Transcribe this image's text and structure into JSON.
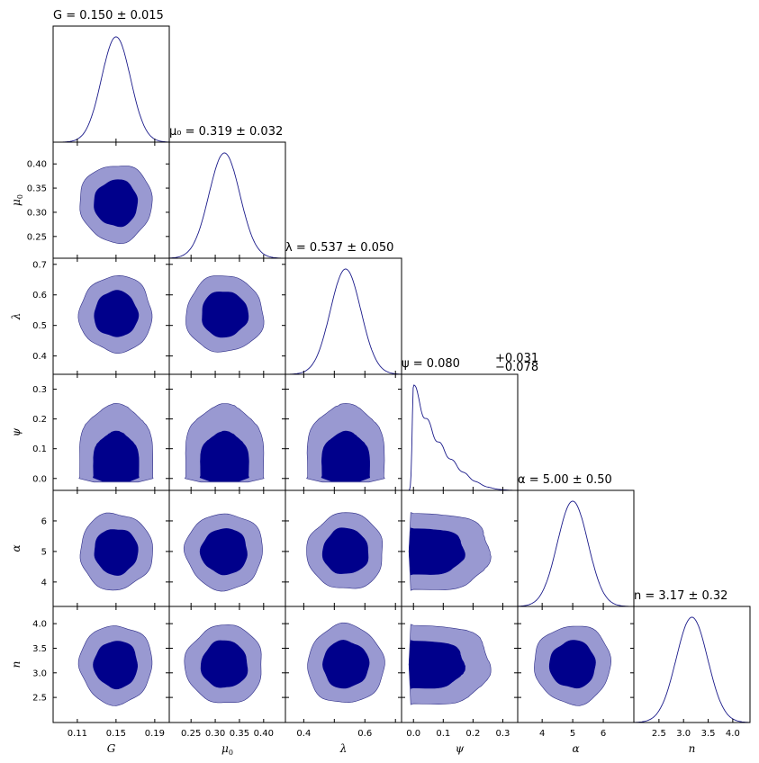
{
  "chart_data": {
    "type": "corner",
    "colors": {
      "line": "#1a1a8a",
      "inner": "#00008b",
      "outer": "#9999d1",
      "outer_edge": "#2c2c86"
    },
    "params": [
      {
        "symbol": "G",
        "sub": "",
        "xlabel_sym": "G",
        "xlabel_sub": "",
        "title_main": "G = 0.150 ± 0.015",
        "title_sup": "",
        "title_sub": "",
        "range": [
          0.085,
          0.205
        ],
        "ticks": [
          0.11,
          0.15,
          0.19
        ],
        "tick_labels": [
          "0.11",
          "0.15",
          "0.19"
        ],
        "mean": 0.15,
        "sd": 0.015
      },
      {
        "symbol": "μ",
        "sub": "0",
        "xlabel_sym": "μ",
        "xlabel_sub": "0",
        "title_main": "μ₀ = 0.319 ± 0.032",
        "title_sup": "",
        "title_sub": "",
        "range": [
          0.205,
          0.445
        ],
        "ticks": [
          0.25,
          0.3,
          0.35,
          0.4
        ],
        "tick_labels": [
          "0.25",
          "0.30",
          "0.35",
          "0.40"
        ],
        "ytick_labels": [
          "0.25",
          "0.30",
          "0.35",
          "0.40"
        ],
        "mean": 0.319,
        "sd": 0.032
      },
      {
        "symbol": "λ",
        "sub": "",
        "xlabel_sym": "λ",
        "xlabel_sub": "",
        "title_main": "λ = 0.537 ± 0.050",
        "title_sup": "",
        "title_sub": "",
        "range": [
          0.34,
          0.72
        ],
        "ticks": [
          0.4,
          0.5,
          0.6,
          0.7
        ],
        "tick_labels": [
          "0.4",
          "0.5",
          "0.6",
          "0.7"
        ],
        "xtick_labels": [
          "0.4",
          "",
          "0.6",
          ""
        ],
        "mean": 0.537,
        "sd": 0.05
      },
      {
        "symbol": "ψ",
        "sub": "",
        "xlabel_sym": "ψ",
        "xlabel_sub": "",
        "title_main": "ψ = 0.080",
        "title_sup": "+0.031",
        "title_sub": "−0.078",
        "range": [
          -0.04,
          0.35
        ],
        "ticks": [
          0.0,
          0.1,
          0.2,
          0.3
        ],
        "tick_labels": [
          "0.0",
          "0.1",
          "0.2",
          "0.3"
        ],
        "mean": 0.08,
        "sd": 0.06
      },
      {
        "symbol": "α",
        "sub": "",
        "xlabel_sym": "α",
        "xlabel_sub": "",
        "title_main": "α = 5.00 ± 0.50",
        "title_sup": "",
        "title_sub": "",
        "range": [
          3.2,
          7.0
        ],
        "ticks": [
          4,
          5,
          6
        ],
        "tick_labels": [
          "4",
          "5",
          "6"
        ],
        "mean": 5.0,
        "sd": 0.5
      },
      {
        "symbol": "n",
        "sub": "",
        "xlabel_sym": "n",
        "xlabel_sub": "",
        "title_main": "n = 3.17 ± 0.32",
        "title_sup": "",
        "title_sub": "",
        "range": [
          1.99,
          4.35
        ],
        "ticks": [
          2.5,
          3.0,
          3.5,
          4.0
        ],
        "tick_labels": [
          "2.5",
          "3.0",
          "3.5",
          "4.0"
        ],
        "mean": 3.17,
        "sd": 0.32
      }
    ]
  }
}
